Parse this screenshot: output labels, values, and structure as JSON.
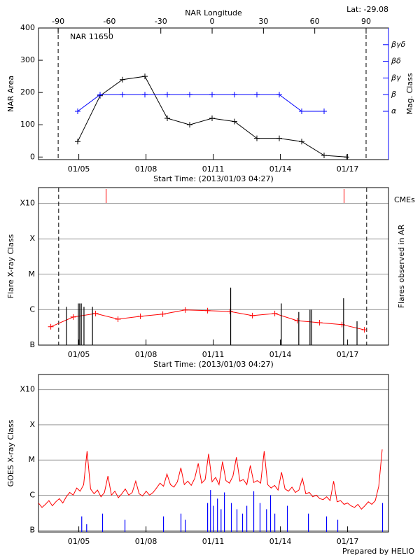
{
  "footer": "Prepared by HELIO",
  "chart_data": [
    {
      "type": "line",
      "title": "NAR 11650",
      "annotation": "Lat: -29.08",
      "xlabel": "Start Time: (2013/01/03 04:27)",
      "x2label": "NAR Longitude",
      "ylabel": "NAR Area",
      "y2label": "Mag. Class",
      "xlim": [
        3.2,
        18.825
      ],
      "xticks": [
        {
          "value": 5,
          "label": "01/05"
        },
        {
          "value": 8,
          "label": "01/08"
        },
        {
          "value": 11,
          "label": "01/11"
        },
        {
          "value": 14,
          "label": "01/14"
        },
        {
          "value": 17,
          "label": "01/17"
        }
      ],
      "x2lim": [
        -101.5,
        103.1
      ],
      "x2ticks": [
        -90,
        -60,
        -30,
        0,
        30,
        60,
        90
      ],
      "ylim": [
        -8,
        400
      ],
      "yticks": [
        0,
        100,
        200,
        300,
        400
      ],
      "y2lim": [
        -1.9,
        6
      ],
      "y2ticks": [
        {
          "value": 1,
          "label": "α"
        },
        {
          "value": 2,
          "label": "β"
        },
        {
          "value": 3,
          "label": "βγ"
        },
        {
          "value": 4,
          "label": "βδ"
        },
        {
          "value": 5,
          "label": "βγδ"
        }
      ],
      "grid": false,
      "limb_longitudes": [
        -90,
        90
      ],
      "series": [
        {
          "color": "#000000",
          "style": "line",
          "markers": true,
          "x": [
            4.95,
            5.95,
            6.95,
            7.95,
            8.95,
            9.95,
            10.95,
            11.95,
            12.95,
            13.95,
            14.95,
            15.95,
            16.95
          ],
          "values": [
            48,
            190,
            240,
            250,
            120,
            100,
            120,
            110,
            58,
            58,
            48,
            5,
            0
          ]
        },
        {
          "color": "#0000ff",
          "style": "line",
          "markers": true,
          "axis": "y2",
          "x": [
            4.95,
            5.95,
            6.95,
            7.95,
            8.95,
            9.95,
            10.95,
            11.95,
            12.95,
            13.95,
            14.95,
            15.95
          ],
          "values": [
            1,
            2,
            2,
            2,
            2,
            2,
            2,
            2,
            2,
            2,
            1,
            1
          ]
        }
      ]
    },
    {
      "type": "event",
      "xlabel": "Start Time: (2013/01/03 04:27)",
      "ylabel": "Flare X-ray Class",
      "y2label": "Flares observed in AR",
      "xlim": [
        3.2,
        18.825
      ],
      "xticks": [
        {
          "value": 5,
          "label": "01/05"
        },
        {
          "value": 8,
          "label": "01/08"
        },
        {
          "value": 11,
          "label": "01/11"
        },
        {
          "value": 14,
          "label": "01/14"
        },
        {
          "value": 17,
          "label": "01/17"
        }
      ],
      "log": true,
      "ylim": [
        1e-07,
        0.0028
      ],
      "yticks": [
        {
          "value": 1e-07,
          "label": "B"
        },
        {
          "value": 1e-06,
          "label": "C"
        },
        {
          "value": 1e-05,
          "label": "M"
        },
        {
          "value": 0.0001,
          "label": "X"
        },
        {
          "value": 0.001,
          "label": "X10"
        }
      ],
      "grid": true,
      "limb_times": [
        4.1,
        17.85
      ],
      "cmes": {
        "label": "CMEs",
        "color": "#ff0000",
        "x": [
          6.22,
          16.84
        ]
      },
      "series": [
        {
          "color": "#ff0000",
          "style": "line",
          "markers": true,
          "x": [
            3.75,
            4.75,
            5.75,
            6.75,
            7.75,
            8.75,
            9.75,
            10.75,
            11.75,
            12.75,
            13.75,
            14.75,
            15.75,
            16.75,
            17.75
          ],
          "values": [
            3.3e-07,
            6.2e-07,
            7.8e-07,
            5.4e-07,
            6.5e-07,
            7.5e-07,
            9.8e-07,
            9.4e-07,
            8.9e-07,
            6.8e-07,
            7.8e-07,
            4.9e-07,
            4.3e-07,
            3.8e-07,
            2.7e-07
          ]
        },
        {
          "color": "#000000",
          "style": "spikes",
          "x": [
            4.45,
            4.98,
            5.04,
            5.11,
            5.23,
            5.61,
            11.78,
            14.04,
            14.82,
            15.32,
            15.39,
            16.82,
            17.42
          ],
          "values": [
            1.2e-06,
            1.5e-06,
            1.5e-06,
            1.5e-06,
            1.2e-06,
            1.2e-06,
            4.2e-06,
            1.5e-06,
            8.6e-07,
            1e-06,
            1e-06,
            2.1e-06,
            4.7e-07
          ]
        }
      ]
    },
    {
      "type": "timeseries",
      "ylabel": "GOES X-ray Class",
      "xlim": [
        3.2,
        18.825
      ],
      "xticks": [
        {
          "value": 5,
          "label": "01/05"
        },
        {
          "value": 8,
          "label": "01/08"
        },
        {
          "value": 11,
          "label": "01/11"
        },
        {
          "value": 14,
          "label": "01/14"
        },
        {
          "value": 17,
          "label": "01/17"
        }
      ],
      "log": true,
      "ylim": [
        9e-08,
        0.0027
      ],
      "yticks": [
        {
          "value": 1e-07,
          "label": "B"
        },
        {
          "value": 1e-06,
          "label": "C"
        },
        {
          "value": 1e-05,
          "label": "M"
        },
        {
          "value": 0.0001,
          "label": "X"
        },
        {
          "value": 0.001,
          "label": "X10"
        }
      ],
      "grid": true,
      "series": [
        {
          "color": "#ff0000",
          "style": "line",
          "markers": false,
          "x": [
            3.2,
            3.355,
            3.51,
            3.665,
            3.82,
            3.975,
            4.13,
            4.285,
            4.44,
            4.595,
            4.75,
            4.905,
            5.06,
            5.215,
            5.37,
            5.525,
            5.68,
            5.835,
            5.99,
            6.145,
            6.3,
            6.455,
            6.61,
            6.765,
            6.92,
            7.075,
            7.23,
            7.385,
            7.54,
            7.695,
            7.85,
            8.005,
            8.16,
            8.315,
            8.47,
            8.625,
            8.78,
            8.935,
            9.09,
            9.245,
            9.4,
            9.555,
            9.71,
            9.865,
            10.02,
            10.175,
            10.33,
            10.485,
            10.64,
            10.795,
            10.95,
            11.105,
            11.26,
            11.415,
            11.57,
            11.725,
            11.88,
            12.035,
            12.19,
            12.345,
            12.5,
            12.655,
            12.81,
            12.965,
            13.12,
            13.275,
            13.43,
            13.585,
            13.74,
            13.895,
            14.05,
            14.205,
            14.36,
            14.515,
            14.67,
            14.825,
            14.98,
            15.135,
            15.29,
            15.445,
            15.6,
            15.755,
            15.91,
            16.065,
            16.22,
            16.375,
            16.53,
            16.685,
            16.84,
            16.995,
            17.15,
            17.305,
            17.46,
            17.615,
            17.77,
            17.925,
            18.08,
            18.235,
            18.39,
            18.545
          ],
          "values": [
            6e-07,
            4.5e-07,
            5.5e-07,
            7e-07,
            5e-07,
            6.5e-07,
            8e-07,
            6e-07,
            9e-07,
            1.2e-06,
            1e-06,
            1.6e-06,
            1.3e-06,
            2e-06,
            1.8e-05,
            1.5e-06,
            1.1e-06,
            1.4e-06,
            9e-07,
            1.2e-06,
            3.5e-06,
            1e-06,
            1.3e-06,
            8.5e-07,
            1.1e-06,
            1.5e-06,
            1e-06,
            1.2e-06,
            2.5e-06,
            1.1e-06,
            9.5e-07,
            1.3e-06,
            1e-06,
            1.2e-06,
            1.6e-06,
            2.2e-06,
            1.8e-06,
            4e-06,
            2e-06,
            1.7e-06,
            2.4e-06,
            6e-06,
            2e-06,
            2.5e-06,
            1.9e-06,
            3e-06,
            8e-06,
            2.2e-06,
            2.8e-06,
            1.5e-05,
            2.4e-06,
            3.2e-06,
            2e-06,
            9e-06,
            2.6e-06,
            2.2e-06,
            3.5e-06,
            1.2e-05,
            2.5e-06,
            2.8e-06,
            2e-06,
            7e-06,
            2.3e-06,
            2.6e-06,
            2.2e-06,
            1.8e-05,
            2e-06,
            1.6e-06,
            1.9e-06,
            1.4e-06,
            4.5e-06,
            1.5e-06,
            1.3e-06,
            1.7e-06,
            1.2e-06,
            1.4e-06,
            3e-06,
            1.1e-06,
            1.2e-06,
            9e-07,
            1e-06,
            8e-07,
            7.5e-07,
            9e-07,
            7e-07,
            2.5e-06,
            6.5e-07,
            7e-07,
            5.5e-07,
            6e-07,
            5e-07,
            4.5e-07,
            5.5e-07,
            4e-07,
            5e-07,
            6.5e-07,
            5.5e-07,
            7e-07,
            1.8e-06,
            2e-05
          ]
        },
        {
          "color": "#0000ff",
          "style": "spikes",
          "x": [
            5.13,
            5.35,
            6.06,
            7.06,
            8.78,
            9.56,
            9.75,
            10.75,
            10.88,
            11.0,
            11.19,
            11.35,
            11.5,
            11.81,
            12.06,
            12.31,
            12.5,
            12.81,
            13.09,
            13.38,
            13.56,
            13.75,
            14.31,
            15.25,
            16.06,
            16.56,
            18.56
          ],
          "values": [
            2.5e-07,
            1.5e-07,
            3e-07,
            2e-07,
            2.5e-07,
            3e-07,
            2e-07,
            6e-07,
            1.4e-06,
            5e-07,
            8e-07,
            4e-07,
            1.2e-06,
            6e-07,
            4e-07,
            3e-07,
            5e-07,
            1.3e-06,
            6e-07,
            4e-07,
            1e-06,
            3e-07,
            5e-07,
            3e-07,
            2.5e-07,
            2e-07,
            6e-07
          ]
        }
      ]
    }
  ]
}
